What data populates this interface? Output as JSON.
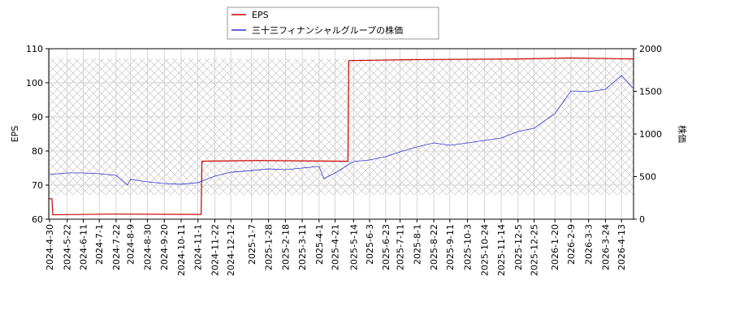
{
  "chart_data": {
    "type": "line",
    "xlim": [
      "2024-04-29",
      "2026-04-28"
    ],
    "xticks": [
      {
        "value": "2024-04-30",
        "label": "2024-4-30"
      },
      {
        "value": "2024-05-22",
        "label": "2024-5-22"
      },
      {
        "value": "2024-06-11",
        "label": "2024-6-11"
      },
      {
        "value": "2024-07-01",
        "label": "2024-7-1"
      },
      {
        "value": "2024-07-22",
        "label": "2024-7-22"
      },
      {
        "value": "2024-08-09",
        "label": "2024-8-9"
      },
      {
        "value": "2024-08-30",
        "label": "2024-8-30"
      },
      {
        "value": "2024-09-20",
        "label": "2024-9-20"
      },
      {
        "value": "2024-10-11",
        "label": "2024-10-11"
      },
      {
        "value": "2024-11-01",
        "label": "2024-11-1"
      },
      {
        "value": "2024-11-22",
        "label": "2024-11-22"
      },
      {
        "value": "2024-12-12",
        "label": "2024-12-12"
      },
      {
        "value": "2025-01-07",
        "label": "2025-1-7"
      },
      {
        "value": "2025-01-28",
        "label": "2025-1-28"
      },
      {
        "value": "2025-02-18",
        "label": "2025-2-18"
      },
      {
        "value": "2025-03-11",
        "label": "2025-3-11"
      },
      {
        "value": "2025-04-01",
        "label": "2025-4-1"
      },
      {
        "value": "2025-04-21",
        "label": "2025-4-21"
      },
      {
        "value": "2025-05-14",
        "label": "2025-5-14"
      },
      {
        "value": "2025-06-03",
        "label": "2025-6-3"
      },
      {
        "value": "2025-06-23",
        "label": "2025-6-23"
      },
      {
        "value": "2025-07-11",
        "label": "2025-7-11"
      },
      {
        "value": "2025-08-01",
        "label": "2025-8-1"
      },
      {
        "value": "2025-08-22",
        "label": "2025-8-22"
      },
      {
        "value": "2025-09-11",
        "label": "2025-9-11"
      },
      {
        "value": "2025-10-03",
        "label": "2025-10-3"
      },
      {
        "value": "2025-10-24",
        "label": "2025-10-24"
      },
      {
        "value": "2025-11-14",
        "label": "2025-11-14"
      },
      {
        "value": "2025-12-05",
        "label": "2025-12-5"
      },
      {
        "value": "2025-12-25",
        "label": "2025-12-25"
      },
      {
        "value": "2026-01-20",
        "label": "2026-1-20"
      },
      {
        "value": "2026-02-09",
        "label": "2026-2-9"
      },
      {
        "value": "2026-03-03",
        "label": "2026-3-3"
      },
      {
        "value": "2026-03-24",
        "label": "2026-3-24"
      },
      {
        "value": "2026-04-13",
        "label": "2026-4-13"
      }
    ],
    "ylabel": "EPS",
    "ylim": [
      60,
      110
    ],
    "yticks": [
      60,
      70,
      80,
      90,
      100,
      110
    ],
    "y2label": "株価",
    "y2lim": [
      0,
      2000
    ],
    "y2ticks": [
      0,
      500,
      1000,
      1500,
      2000
    ],
    "grid": true,
    "legend": "top",
    "series": [
      {
        "name": "EPS",
        "color": "#cc0000",
        "x": [
          "2024-04-29",
          "2024-05-03",
          "2024-05-04",
          "2024-07-15",
          "2024-11-05",
          "2024-11-06",
          "2025-01-15",
          "2025-05-07",
          "2025-05-08",
          "2025-08-01",
          "2025-12-05",
          "2026-02-09",
          "2026-04-28"
        ],
        "values": [
          66,
          66,
          61.3,
          61.5,
          61.4,
          77,
          77.2,
          77,
          106.5,
          106.8,
          107,
          107.3,
          107
        ]
      },
      {
        "name": "三十三フィナンシャルグループの株価",
        "color": "#3333cc",
        "axis": "y2",
        "x": [
          "2024-04-30",
          "2024-05-22",
          "2024-06-11",
          "2024-07-01",
          "2024-07-22",
          "2024-08-05",
          "2024-08-09",
          "2024-08-30",
          "2024-09-20",
          "2024-10-11",
          "2024-11-01",
          "2024-11-22",
          "2024-12-12",
          "2025-01-07",
          "2025-01-28",
          "2025-02-18",
          "2025-03-11",
          "2025-04-01",
          "2025-04-07",
          "2025-04-21",
          "2025-05-14",
          "2025-06-03",
          "2025-06-23",
          "2025-07-11",
          "2025-08-01",
          "2025-08-22",
          "2025-09-11",
          "2025-10-03",
          "2025-10-24",
          "2025-11-14",
          "2025-12-05",
          "2025-12-25",
          "2026-01-20",
          "2026-02-09",
          "2026-03-03",
          "2026-03-24",
          "2026-04-13",
          "2026-04-27"
        ],
        "values": [
          524,
          543,
          543,
          533,
          514,
          400,
          467,
          438,
          419,
          410,
          429,
          505,
          552,
          571,
          590,
          581,
          600,
          619,
          476,
          543,
          676,
          695,
          733,
          790,
          848,
          895,
          867,
          895,
          924,
          952,
          1029,
          1067,
          1238,
          1505,
          1495,
          1524,
          1686,
          1543
        ]
      }
    ]
  }
}
